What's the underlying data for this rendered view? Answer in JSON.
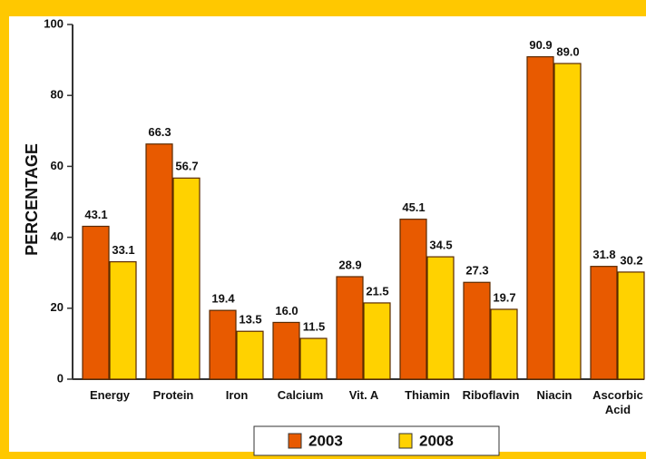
{
  "chart_data": {
    "type": "bar",
    "y_label": "PERCENTAGE",
    "categories": [
      "Energy",
      "Protein",
      "Iron",
      "Calcium",
      "Vit. A",
      "Thiamin",
      "Riboflavin",
      "Niacin",
      "Ascorbic Acid"
    ],
    "series": [
      {
        "name": "2003",
        "color": "#e85a00",
        "values": [
          43.1,
          66.3,
          19.4,
          16.0,
          28.9,
          45.1,
          27.3,
          90.9,
          31.8
        ],
        "value_labels": [
          "43.1",
          "66.3",
          "19.4",
          "16.0",
          "28.9",
          "45.1",
          "27.3",
          "90.9",
          "31.8"
        ]
      },
      {
        "name": "2008",
        "color": "#ffd200",
        "values": [
          33.1,
          56.7,
          13.5,
          11.5,
          21.5,
          34.5,
          19.7,
          89.0,
          30.2
        ],
        "value_labels": [
          "33.1",
          "56.7",
          "13.5",
          "11.5",
          "21.5",
          "34.5",
          "19.7",
          "89.0",
          "30.2"
        ]
      }
    ],
    "ylim": [
      0,
      100
    ],
    "yticks": [
      0,
      20,
      40,
      60,
      80,
      100
    ],
    "legend": "bottom"
  }
}
